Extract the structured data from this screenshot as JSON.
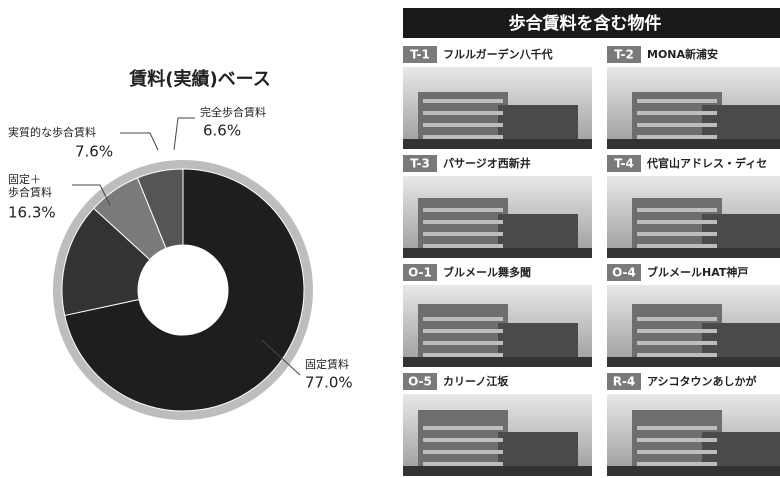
{
  "chart_data": {
    "type": "donut",
    "title": "賃料(実績)ベース",
    "categories": [
      "固定賃料",
      "固定＋\n歩合賃料",
      "実質的な歩合賃料",
      "完全歩合賃料"
    ],
    "values": [
      77.0,
      16.3,
      7.6,
      6.6
    ],
    "value_labels": [
      "77.0%",
      "16.3%",
      "7.6%",
      "6.6%"
    ],
    "colors": [
      "#1e1e1e",
      "#333333",
      "#7a7a7a",
      "#555555"
    ],
    "ring_color": "#bdbdbd"
  },
  "properties": {
    "title": "歩合賃料を含む物件",
    "items": [
      {
        "code": "T-1",
        "name": "フルルガーデン八千代"
      },
      {
        "code": "T-2",
        "name": "MONA新浦安"
      },
      {
        "code": "T-3",
        "name": "パサージオ西新井"
      },
      {
        "code": "T-4",
        "name": "代官山アドレス・ディセ"
      },
      {
        "code": "O-1",
        "name": "ブルメール舞多聞"
      },
      {
        "code": "O-4",
        "name": "ブルメールHAT神戸"
      },
      {
        "code": "O-5",
        "name": "カリーノ江坂"
      },
      {
        "code": "R-4",
        "name": "アシコタウンあしかが"
      }
    ]
  }
}
